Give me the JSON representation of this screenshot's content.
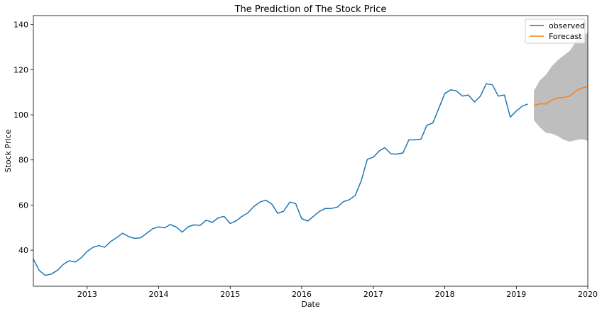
{
  "chart_data": {
    "type": "line",
    "title": "The Prediction of The Stock Price",
    "xlabel": "Date",
    "ylabel": "Stock Price",
    "x_axis_type": "date",
    "xlim": [
      "2012-04-01",
      "2020-01-01"
    ],
    "ylim": [
      24,
      144
    ],
    "x_ticks": [
      "2013-01-01",
      "2014-01-01",
      "2015-01-01",
      "2016-01-01",
      "2017-01-01",
      "2018-01-01",
      "2019-01-01",
      "2020-01-01"
    ],
    "x_tick_labels": [
      "2013",
      "2014",
      "2015",
      "2016",
      "2017",
      "2018",
      "2019",
      "2020"
    ],
    "y_ticks": [
      40,
      60,
      80,
      100,
      120,
      140
    ],
    "y_tick_labels": [
      "40",
      "60",
      "80",
      "100",
      "120",
      "140"
    ],
    "grid": false,
    "legend_position": "top-right",
    "series": [
      {
        "name": "observed",
        "color": "#1f77b4",
        "x": [
          "2012-04-01",
          "2012-05-01",
          "2012-06-01",
          "2012-07-01",
          "2012-08-01",
          "2012-09-01",
          "2012-10-01",
          "2012-11-01",
          "2012-12-01",
          "2013-01-01",
          "2013-02-01",
          "2013-03-01",
          "2013-04-01",
          "2013-05-01",
          "2013-06-01",
          "2013-07-01",
          "2013-08-01",
          "2013-09-01",
          "2013-10-01",
          "2013-11-01",
          "2013-12-01",
          "2014-01-01",
          "2014-02-01",
          "2014-03-01",
          "2014-04-01",
          "2014-05-01",
          "2014-06-01",
          "2014-07-01",
          "2014-08-01",
          "2014-09-01",
          "2014-10-01",
          "2014-11-01",
          "2014-12-01",
          "2015-01-01",
          "2015-02-01",
          "2015-03-01",
          "2015-04-01",
          "2015-05-01",
          "2015-06-01",
          "2015-07-01",
          "2015-08-01",
          "2015-09-01",
          "2015-10-01",
          "2015-11-01",
          "2015-12-01",
          "2016-01-01",
          "2016-02-01",
          "2016-03-01",
          "2016-04-01",
          "2016-05-01",
          "2016-06-01",
          "2016-07-01",
          "2016-08-01",
          "2016-09-01",
          "2016-10-01",
          "2016-11-01",
          "2016-12-01",
          "2017-01-01",
          "2017-02-01",
          "2017-03-01",
          "2017-04-01",
          "2017-05-01",
          "2017-06-01",
          "2017-07-01",
          "2017-08-01",
          "2017-09-01",
          "2017-10-01",
          "2017-11-01",
          "2017-12-01",
          "2018-01-01",
          "2018-02-01",
          "2018-03-01",
          "2018-04-01",
          "2018-05-01",
          "2018-06-01",
          "2018-07-01",
          "2018-08-01",
          "2018-09-01",
          "2018-10-01",
          "2018-11-01",
          "2018-12-01",
          "2019-01-01",
          "2019-02-01",
          "2019-03-01"
        ],
        "values": [
          36.0,
          31.0,
          28.8,
          29.4,
          31.0,
          33.7,
          35.3,
          34.7,
          36.6,
          39.5,
          41.3,
          42.0,
          41.3,
          43.9,
          45.6,
          47.5,
          46.0,
          45.2,
          45.5,
          47.5,
          49.5,
          50.3,
          49.9,
          51.4,
          50.2,
          48.0,
          50.4,
          51.2,
          51.0,
          53.3,
          52.3,
          54.3,
          55.0,
          51.8,
          53.0,
          54.9,
          56.5,
          59.3,
          61.3,
          62.2,
          60.5,
          56.3,
          57.3,
          61.3,
          60.7,
          54.0,
          52.9,
          55.0,
          57.2,
          58.5,
          58.5,
          59.1,
          61.5,
          62.4,
          64.3,
          71.0,
          80.3,
          81.2,
          84.1,
          85.4,
          82.7,
          82.6,
          83.1,
          88.9,
          88.9,
          89.2,
          95.3,
          96.4,
          102.9,
          109.5,
          111.1,
          110.6,
          108.3,
          108.8,
          105.7,
          108.2,
          113.8,
          113.3,
          108.3,
          108.8,
          99.0,
          101.7,
          103.9,
          104.8
        ]
      },
      {
        "name": "Forecast",
        "color": "#ff7f0e",
        "x": [
          "2019-04-01",
          "2019-05-01",
          "2019-06-01",
          "2019-07-01",
          "2019-08-01",
          "2019-09-01",
          "2019-10-01",
          "2019-11-01",
          "2019-12-01",
          "2020-01-01"
        ],
        "values": [
          104.1,
          104.9,
          104.8,
          106.5,
          107.5,
          107.7,
          108.3,
          110.6,
          111.8,
          112.6
        ],
        "ci_lower": [
          97.6,
          94.5,
          92.0,
          91.7,
          90.5,
          88.9,
          88.1,
          88.8,
          89.2,
          88.5
        ],
        "ci_upper": [
          110.6,
          115.3,
          117.7,
          121.5,
          124.3,
          126.3,
          128.4,
          132.4,
          134.4,
          136.5
        ],
        "ci_color": "#bebebe"
      }
    ]
  }
}
